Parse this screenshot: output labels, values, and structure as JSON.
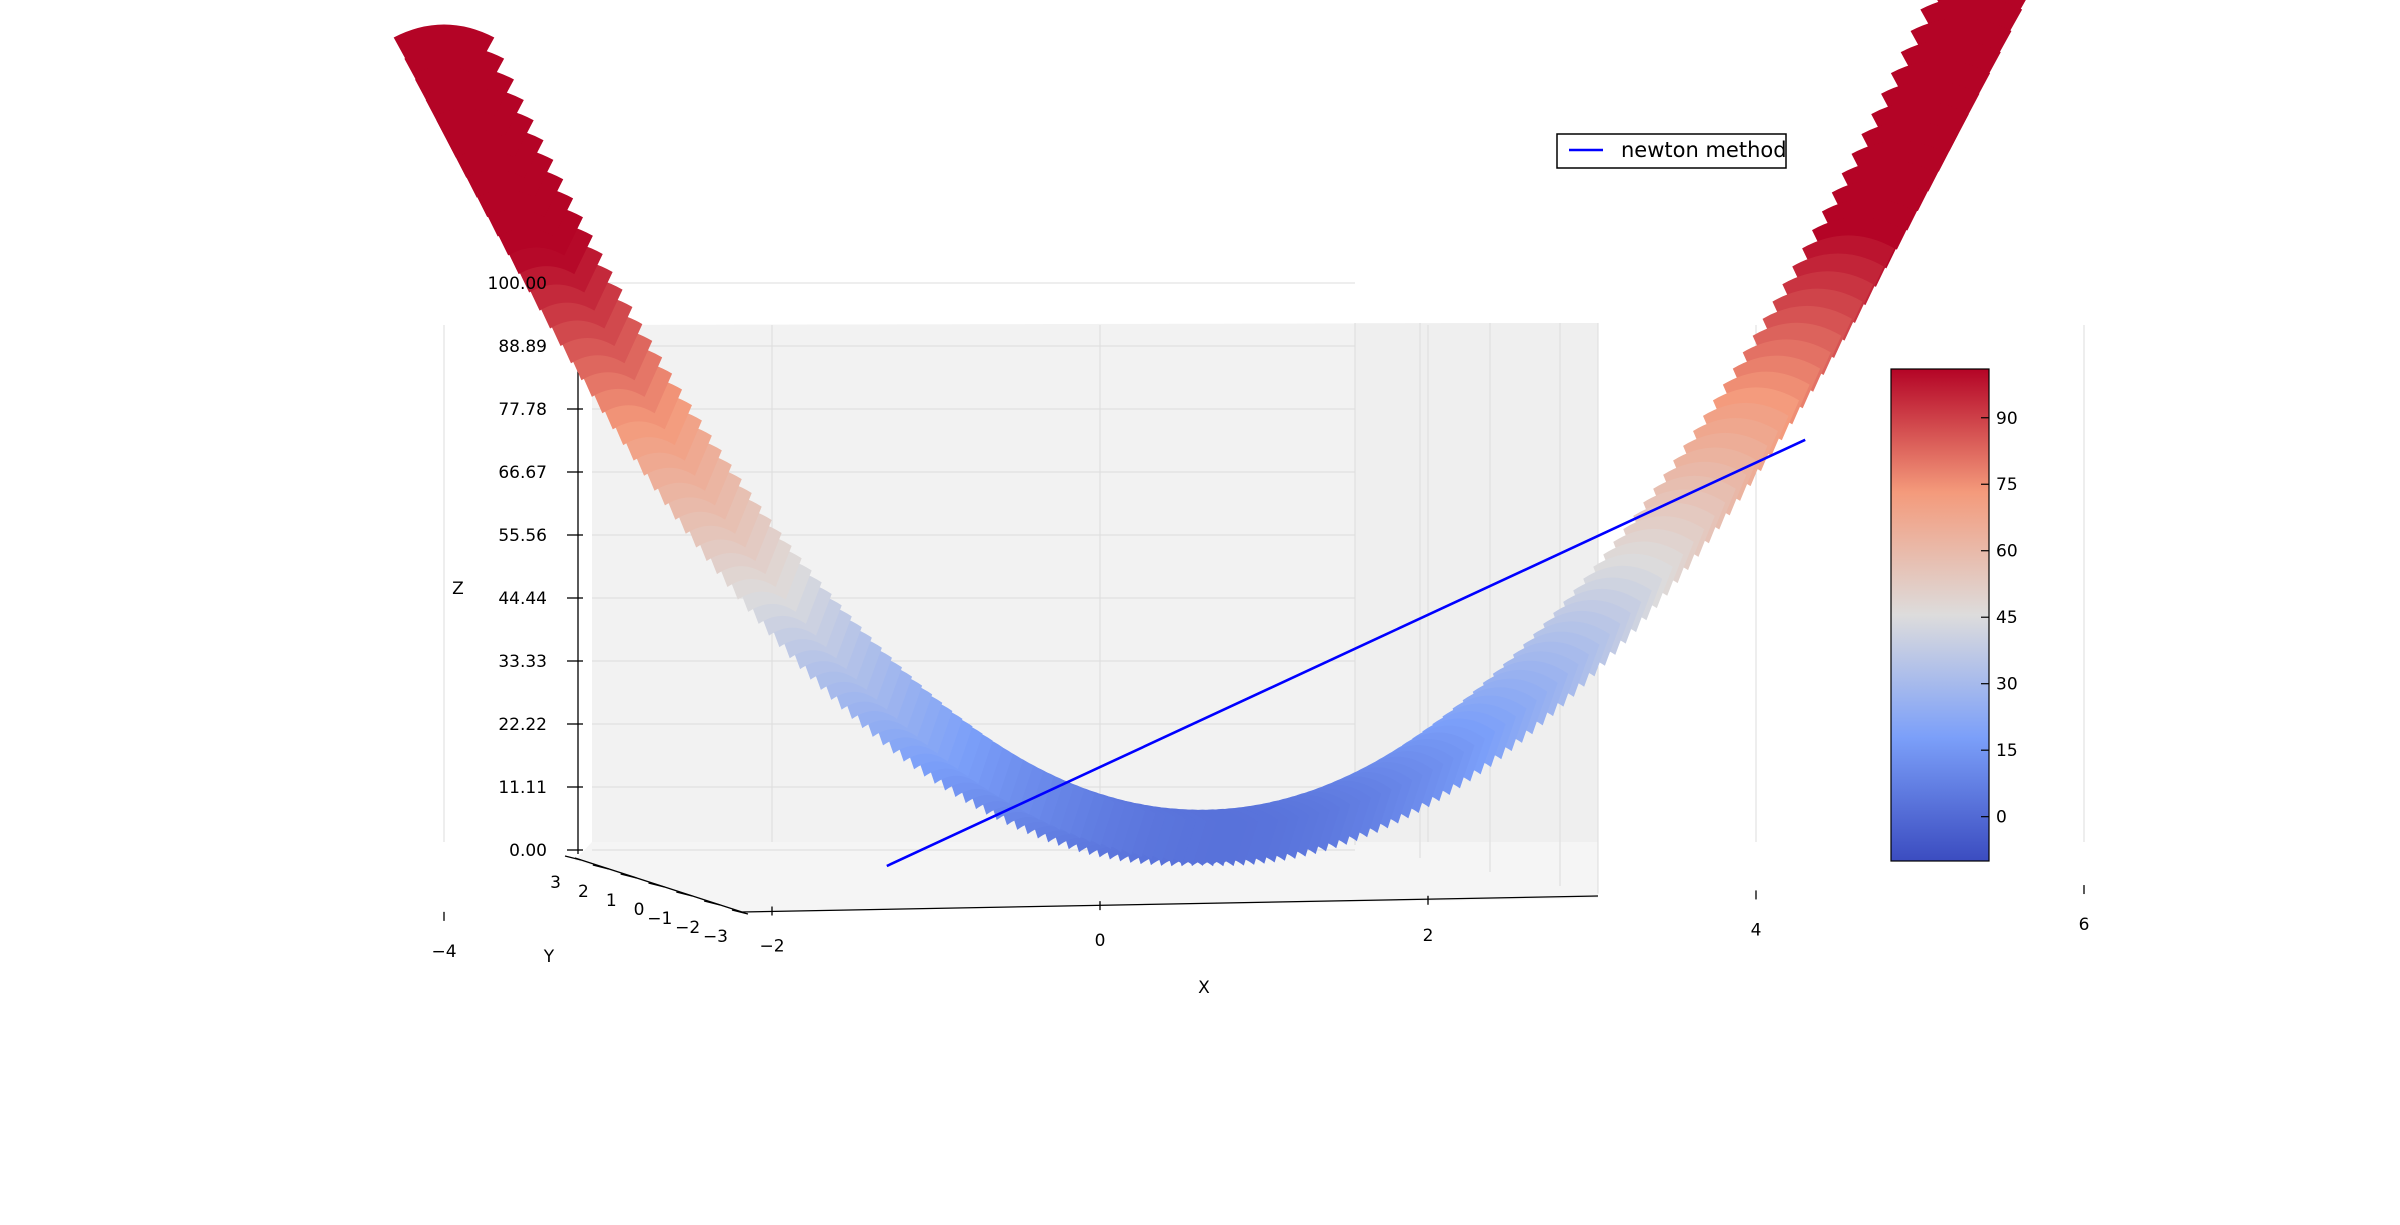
{
  "chart_data": {
    "type": "surface3d",
    "title": "",
    "xlabel": "X",
    "ylabel": "Y",
    "zlabel": "Z",
    "xlim": [
      -4,
      6
    ],
    "ylim": [
      -3,
      3
    ],
    "zlim": [
      0,
      100
    ],
    "x_ticks": [
      "−4",
      "−2",
      "0",
      "2",
      "4",
      "6"
    ],
    "y_ticks": [
      "−3",
      "−2",
      "−1",
      "0",
      "1",
      "2",
      "3"
    ],
    "z_ticks": [
      "0.00",
      "11.11",
      "22.22",
      "33.33",
      "44.44",
      "55.56",
      "66.67",
      "77.78",
      "88.89",
      "100.00"
    ],
    "surface": {
      "colormap": "coolwarm",
      "x_range": [
        -4,
        6
      ],
      "y_range": [
        -3,
        3
      ]
    },
    "series": [
      {
        "name": "newton method",
        "color": "#0000ff",
        "points": [
          {
            "x": -1.3,
            "z": 0
          },
          {
            "x": 4.3,
            "z": 72
          }
        ]
      }
    ],
    "legend": {
      "position": "top-right",
      "entries": [
        "newton method"
      ]
    },
    "colorbar": {
      "ticks": [
        "0",
        "15",
        "30",
        "45",
        "60",
        "75",
        "90"
      ],
      "range": [
        -10,
        101
      ]
    },
    "grid": true
  }
}
